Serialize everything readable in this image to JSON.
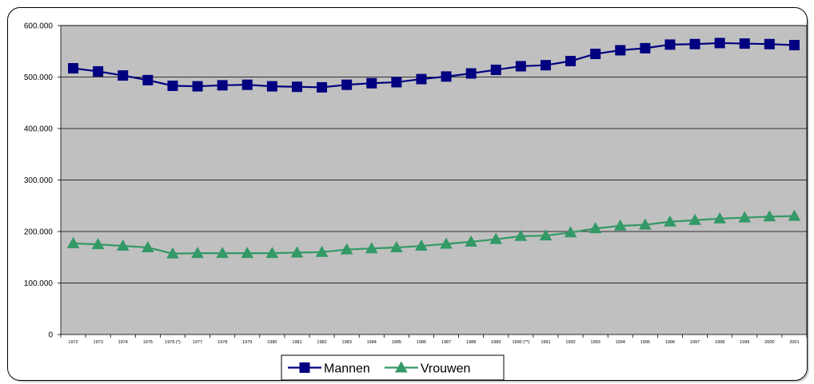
{
  "chart_data": {
    "type": "line",
    "title": "",
    "xlabel": "",
    "ylabel": "",
    "ylim": [
      0,
      600000
    ],
    "ytick_values": [
      0,
      100000,
      200000,
      300000,
      400000,
      500000,
      600000
    ],
    "ytick_labels": [
      "0",
      "100.000",
      "200.000",
      "300.000",
      "400.000",
      "500.000",
      "600.000"
    ],
    "categories": [
      "1972",
      "1973",
      "1974",
      "1975",
      "1976 (*)",
      "1977",
      "1978",
      "1979",
      "1980",
      "1981",
      "1982",
      "1983",
      "1984",
      "1985",
      "1986",
      "1987",
      "1988",
      "1989",
      "1990 (**)",
      "1991",
      "1992",
      "1993",
      "1994",
      "1995",
      "1996",
      "1997",
      "1998",
      "1999",
      "2000",
      "2001"
    ],
    "grid": true,
    "legend_position": "bottom",
    "series": [
      {
        "name": "Mannen",
        "color": "#000080",
        "marker": "square",
        "values": [
          517000,
          511000,
          503000,
          494000,
          483000,
          482000,
          484000,
          485000,
          482000,
          481000,
          480000,
          485000,
          488000,
          490000,
          496000,
          501000,
          507000,
          514000,
          521000,
          523000,
          531000,
          545000,
          552000,
          556000,
          563000,
          564000,
          566000,
          565000,
          564000,
          562000
        ]
      },
      {
        "name": "Vrouwen",
        "color": "#339966",
        "marker": "triangle",
        "values": [
          177000,
          175000,
          172000,
          169000,
          157000,
          158000,
          158000,
          158000,
          158000,
          159000,
          160000,
          165000,
          167000,
          169000,
          172000,
          176000,
          180000,
          185000,
          191000,
          192000,
          198000,
          206000,
          211000,
          213000,
          219000,
          222000,
          225000,
          227000,
          229000,
          230000
        ]
      }
    ]
  }
}
